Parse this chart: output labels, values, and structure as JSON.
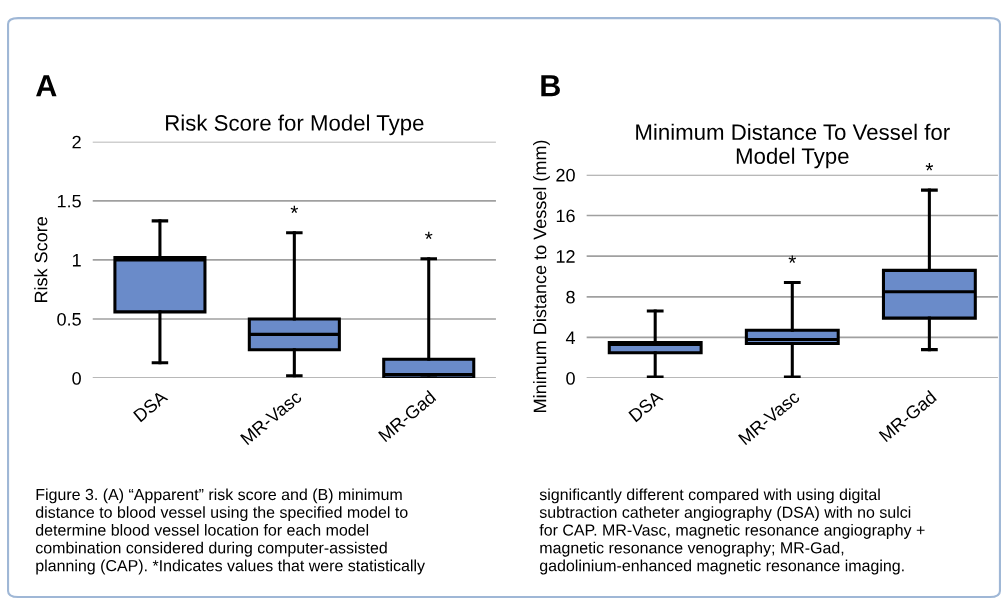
{
  "chart_data": [
    {
      "type": "box",
      "title": "Risk Score for Model Type",
      "ylabel": "Risk Score",
      "categories": [
        "DSA",
        "MR-Vasc",
        "MR-Gad"
      ],
      "color": "#6a8bc9",
      "ylim": [
        0,
        2
      ],
      "yticks": [
        0,
        0.5,
        1,
        1.5,
        2
      ],
      "grid": "y",
      "boxes": [
        {
          "low": 0.13,
          "q1": 0.56,
          "median": 1.0,
          "q3": 1.02,
          "high": 1.33
        },
        {
          "low": 0.02,
          "q1": 0.24,
          "median": 0.37,
          "q3": 0.5,
          "high": 1.23
        },
        {
          "low": 0,
          "q1": 0,
          "median": 0.03,
          "q3": 0.16,
          "high": 1.01
        }
      ],
      "annotations": [
        "A",
        "Figure 3. (A) “Apparent” risk score and (B) minimum\ndistance to blood vessel using the specified model to\ndetermine blood vessel location for each model\ncombination considered during computer-assisted\nplanning (CAP). *Indicates values that were statistically",
        "*",
        "*"
      ]
    },
    {
      "type": "box",
      "title": "Minimum Distance To Vessel for\nModel Type",
      "ylabel": "Minimum Distance to Vessel (mm)",
      "categories": [
        "DSA",
        "MR-Vasc",
        "MR-Gad"
      ],
      "color": "#6a8bc9",
      "ylim": [
        0,
        20
      ],
      "yticks": [
        0,
        4,
        8,
        12,
        16,
        20
      ],
      "grid": "y",
      "boxes": [
        {
          "low": 0.1,
          "q1": 2.5,
          "median": 3.3,
          "q3": 3.5,
          "high": 6.6
        },
        {
          "low": 0.1,
          "q1": 3.4,
          "median": 3.8,
          "q3": 4.7,
          "high": 9.4
        },
        {
          "low": 2.8,
          "q1": 5.9,
          "median": 8.5,
          "q3": 10.6,
          "high": 18.5
        }
      ],
      "annotations": [
        "B",
        "significantly different compared with using digital\nsubtraction catheter angiography (DSA) with no sulci\nfor CAP. MR-Vasc, magnetic resonance angiography +\nmagnetic resonance venography; MR-Gad,\ngadolinium-enhanced magnetic resonance imaging.",
        "*",
        "*"
      ]
    }
  ]
}
